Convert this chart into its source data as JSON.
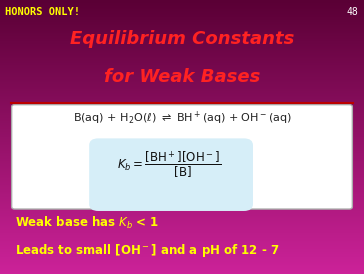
{
  "bg_color_top": "#5a0035",
  "bg_color_bottom": "#cc2299",
  "honors_text": "HONORS ONLY!",
  "honors_color": "#ffff00",
  "honors_fontsize": 7.5,
  "slide_number": "48",
  "slide_number_color": "#ffffff",
  "slide_number_fontsize": 7,
  "title_line1": "Equilibrium Constants",
  "title_line2": "for Weak Bases",
  "title_color": "#ff2222",
  "title_fontsize": 13,
  "divider_color": "#bb0000",
  "box_bg": "#ffffff",
  "box_border": "#aaaaaa",
  "formula_box_bg": "#d6eef8",
  "bullet_color": "#ffff00",
  "bullet_fontsize": 8.5
}
